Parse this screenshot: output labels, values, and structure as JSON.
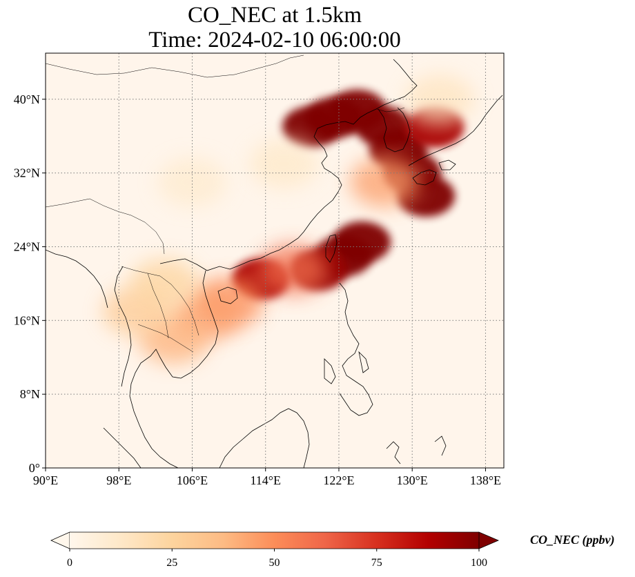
{
  "title": {
    "line1": "CO_NEC at 1.5km",
    "line2": "Time: 2024-02-10 06:00:00"
  },
  "map": {
    "extent": {
      "lon_min": 90,
      "lon_max": 140,
      "lat_min": 0,
      "lat_max": 45
    },
    "x_ticks": [
      {
        "value": 90,
        "label": "90°E"
      },
      {
        "value": 98,
        "label": "98°E"
      },
      {
        "value": 106,
        "label": "106°E"
      },
      {
        "value": 114,
        "label": "114°E"
      },
      {
        "value": 122,
        "label": "122°E"
      },
      {
        "value": 130,
        "label": "130°E"
      },
      {
        "value": 138,
        "label": "138°E"
      }
    ],
    "y_ticks": [
      {
        "value": 0,
        "label": "0°"
      },
      {
        "value": 8,
        "label": "8°N"
      },
      {
        "value": 16,
        "label": "16°N"
      },
      {
        "value": 24,
        "label": "24°N"
      },
      {
        "value": 32,
        "label": "32°N"
      },
      {
        "value": 40,
        "label": "40°N"
      }
    ],
    "gridlines": true,
    "plumes": [
      {
        "lon": 121.5,
        "lat": 38.0,
        "value": 100
      },
      {
        "lon": 119.0,
        "lat": 37.0,
        "value": 100
      },
      {
        "lon": 124.0,
        "lat": 38.8,
        "value": 100
      },
      {
        "lon": 127.0,
        "lat": 37.0,
        "value": 100
      },
      {
        "lon": 128.5,
        "lat": 34.5,
        "value": 100
      },
      {
        "lon": 130.0,
        "lat": 32.0,
        "value": 100
      },
      {
        "lon": 131.5,
        "lat": 29.5,
        "value": 100
      },
      {
        "lon": 132.5,
        "lat": 37.0,
        "value": 90
      },
      {
        "lon": 124.5,
        "lat": 24.5,
        "value": 100
      },
      {
        "lon": 122.5,
        "lat": 23.0,
        "value": 100
      },
      {
        "lon": 119.8,
        "lat": 21.5,
        "value": 95
      },
      {
        "lon": 113.5,
        "lat": 20.5,
        "value": 90
      },
      {
        "lon": 117.0,
        "lat": 21.5,
        "value": 60
      },
      {
        "lon": 110.0,
        "lat": 18.0,
        "value": 50
      },
      {
        "lon": 107.5,
        "lat": 16.5,
        "value": 45
      },
      {
        "lon": 104.0,
        "lat": 14.0,
        "value": 40
      },
      {
        "lon": 100.0,
        "lat": 17.0,
        "value": 30
      },
      {
        "lon": 103.0,
        "lat": 20.0,
        "value": 25
      },
      {
        "lon": 127.0,
        "lat": 31.0,
        "value": 45
      },
      {
        "lon": 116.0,
        "lat": 33.0,
        "value": 12
      },
      {
        "lon": 106.0,
        "lat": 31.0,
        "value": 10
      },
      {
        "lon": 133.0,
        "lat": 40.0,
        "value": 15
      }
    ],
    "colors": {
      "background": "#fff5eb",
      "coast": "#000000",
      "grid": "#7a7a7a"
    }
  },
  "colorbar": {
    "min": 0,
    "max": 100,
    "ticks": [
      {
        "value": 0,
        "label": "0"
      },
      {
        "value": 25,
        "label": "25"
      },
      {
        "value": 50,
        "label": "50"
      },
      {
        "value": 75,
        "label": "75"
      },
      {
        "value": 100,
        "label": "100"
      }
    ],
    "title": "CO_NEC (ppbv)",
    "extend": "both",
    "colormap": "OrRd",
    "stops": [
      "#fff7ec",
      "#fee8c8",
      "#fdd49e",
      "#fdbb84",
      "#fc8d59",
      "#ef6548",
      "#d7301f",
      "#b30000",
      "#7f0000"
    ]
  }
}
